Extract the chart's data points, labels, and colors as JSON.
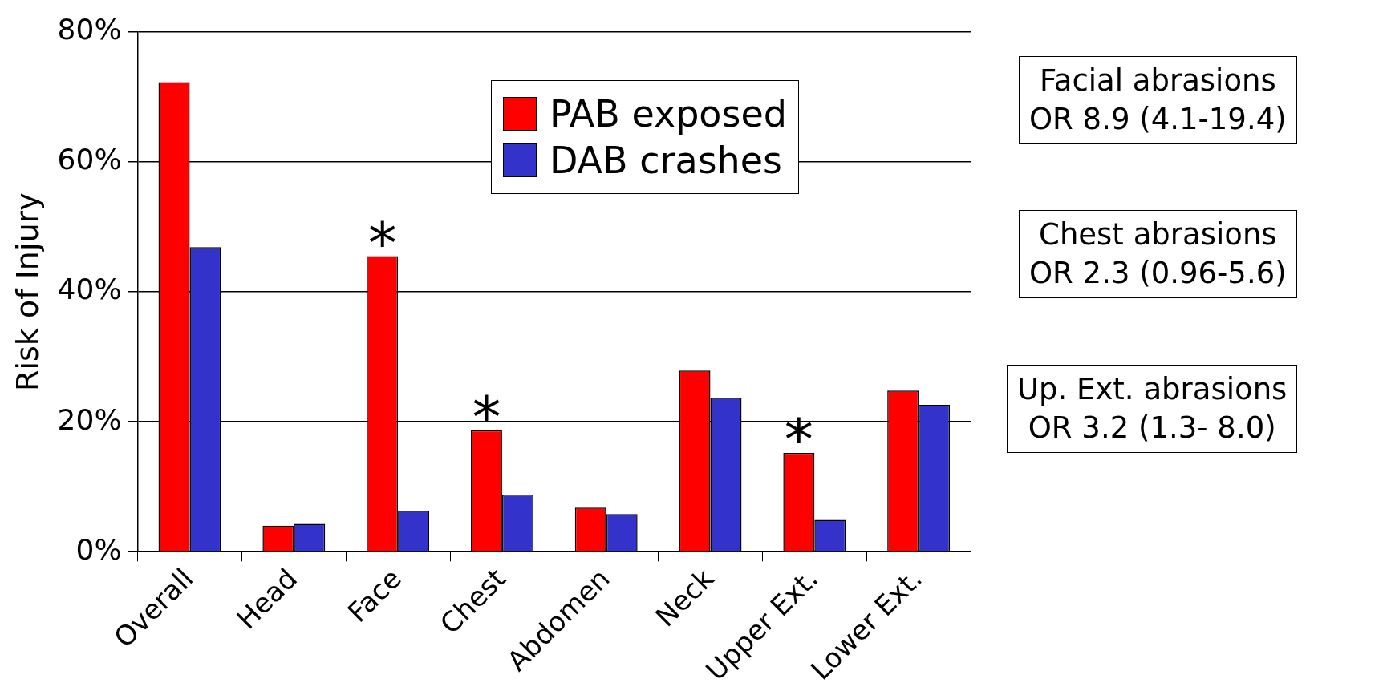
{
  "chart_data": {
    "type": "bar",
    "ylabel": "Risk of Injury",
    "categories": [
      "Overall",
      "Head",
      "Face",
      "Chest",
      "Abdomen",
      "Neck",
      "Upper Ext.",
      "Lower Ext."
    ],
    "series": [
      {
        "name": "PAB exposed",
        "color": "#ff0000",
        "values": [
          72.3,
          4.0,
          45.5,
          18.7,
          6.8,
          27.9,
          15.2,
          24.8
        ]
      },
      {
        "name": "DAB crashes",
        "color": "#3333cc",
        "values": [
          46.9,
          4.3,
          6.3,
          8.8,
          5.8,
          23.7,
          4.9,
          22.6
        ]
      }
    ],
    "ylim": [
      0,
      80
    ],
    "yticks": [
      {
        "value": 0,
        "label": "0%"
      },
      {
        "value": 20,
        "label": "20%"
      },
      {
        "value": 40,
        "label": "40%"
      },
      {
        "value": 60,
        "label": "60%"
      },
      {
        "value": 80,
        "label": "80%"
      }
    ],
    "grid": "y",
    "legend": "top right",
    "annotations": [
      {
        "text": "*",
        "x": "Face",
        "y": 45.5
      },
      {
        "text": "*",
        "x": "Chest",
        "y": 18.7
      },
      {
        "text": "*",
        "x": "Upper Ext.",
        "y": 15.2
      },
      "Facial abrasions\nOR 8.9 (4.1-19.4)",
      "Chest abrasions\nOR 2.3 (0.96-5.6)",
      "Up. Ext. abrasions\nOR 3.2 (1.3- 8.0)"
    ]
  }
}
